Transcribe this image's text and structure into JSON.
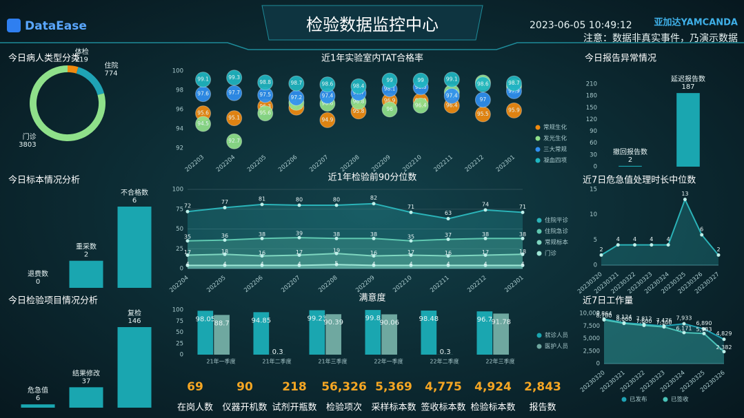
{
  "header": {
    "logo": "DataEase",
    "title": "检验数据监控中心",
    "datetime": "2023-06-05 10:49:12",
    "brand": "亚加达YAMCANDA",
    "notice": "注意：数据非真实事件，乃演示数据"
  },
  "chart_data": [
    {
      "type": "pie",
      "donut": true,
      "title": "今日病人类型分类",
      "categories": [
        "体检",
        "住院",
        "门诊"
      ],
      "values": [
        219,
        774,
        3803
      ],
      "colors": [
        "#f08a0f",
        "#1fa3b5",
        "#8fe08a"
      ]
    },
    {
      "type": "scatter",
      "title": "近1年实验室内TAT合格率",
      "categories": [
        "202203",
        "202204",
        "202205",
        "202206",
        "202207",
        "202208",
        "202209",
        "202210",
        "202211",
        "202212",
        "202301"
      ],
      "ylim": [
        92,
        100
      ],
      "yticks": [
        92,
        94,
        96,
        98,
        100
      ],
      "grid": false,
      "series": [
        {
          "name": "常规生化",
          "color": "#f08a0f",
          "values": [
            95.6,
            95.1,
            96.3,
            96.2,
            94.9,
            95.8,
            96.9,
            96.9,
            96.4,
            95.5,
            95.9
          ]
        },
        {
          "name": "发光生化",
          "color": "#8fe08a",
          "values": [
            94.5,
            92.7,
            95.6,
            96.7,
            96.6,
            96.8,
            96,
            96.4,
            97.8,
            98.8,
            98.4
          ]
        },
        {
          "name": "三大常规",
          "color": "#2f8ff0",
          "values": [
            97.6,
            97.7,
            97.5,
            97.2,
            97.4,
            97.7,
            98.1,
            98.3,
            97.4,
            97,
            97.9
          ]
        },
        {
          "name": "凝血四项",
          "color": "#1fb5c0",
          "values": [
            99.1,
            99.3,
            98.8,
            98.7,
            98.6,
            98.4,
            99,
            99,
            99.1,
            98.6,
            98.7
          ]
        }
      ]
    },
    {
      "type": "bar",
      "title": "今日报告异常情况",
      "categories": [
        "撤回报告数",
        "延迟报告数"
      ],
      "values": [
        2,
        187
      ],
      "color": "#1aa6b0",
      "ylim": [
        0,
        210
      ],
      "yticks": [
        0,
        30,
        60,
        90,
        120,
        150,
        180,
        210
      ],
      "grid": false
    },
    {
      "type": "bar",
      "title": "今日标本情况分析",
      "categories": [
        "退费数",
        "重采数",
        "不合格数"
      ],
      "values": [
        0,
        2,
        6
      ],
      "color": "#1aa6b0"
    },
    {
      "type": "area",
      "title": "近1年检验前90分位数",
      "categories": [
        "202204",
        "202205",
        "202206",
        "202207",
        "202208",
        "202209",
        "202210",
        "202211",
        "202212",
        "202301"
      ],
      "ylim": [
        0,
        100
      ],
      "yticks": [
        0,
        25,
        50,
        75,
        100
      ],
      "grid": true,
      "series": [
        {
          "name": "住院平诊",
          "color": "#2bb3b8",
          "values": [
            72,
            77,
            81,
            80,
            80,
            82,
            71,
            63,
            74,
            71
          ]
        },
        {
          "name": "住院急诊",
          "color": "#5fc8b0",
          "values": [
            35,
            36,
            38,
            39,
            38,
            38,
            35,
            37,
            38,
            38
          ]
        },
        {
          "name": "常规标本",
          "color": "#7fd6c0",
          "values": [
            17,
            18,
            16,
            17,
            19,
            16,
            17,
            16,
            17,
            18
          ]
        },
        {
          "name": "门诊",
          "color": "#9ee6d6",
          "values": [
            4,
            4,
            4,
            4,
            5,
            4,
            4,
            4,
            4,
            4
          ]
        }
      ]
    },
    {
      "type": "area",
      "title": "近7日危急值处理时长中位数",
      "categories": [
        "20230320",
        "20230321",
        "20230322",
        "20230323",
        "20230324",
        "20230325",
        "20230326",
        "20230327"
      ],
      "ylim": [
        0,
        15
      ],
      "yticks": [
        0,
        5,
        10,
        15
      ],
      "grid": false,
      "series": [
        {
          "name": null,
          "color": "#2bb3b8",
          "values": [
            2,
            4,
            4,
            4,
            4,
            13,
            6,
            2
          ]
        }
      ]
    },
    {
      "type": "bar",
      "title": "今日检验项目情况分析",
      "categories": [
        "危急值",
        "结果修改",
        "复检"
      ],
      "values": [
        6,
        37,
        146
      ],
      "color": "#1aa6b0"
    },
    {
      "type": "bar",
      "title": "满意度",
      "categories": [
        "21年一季度",
        "21年二季度",
        "21年三季度",
        "22年一季度",
        "22年二季度",
        "22年三季度"
      ],
      "ylim": [
        0,
        100
      ],
      "yticks": [
        0,
        25,
        50,
        75,
        100
      ],
      "grid": false,
      "series": [
        {
          "name": "就诊人员",
          "color": "#1aa6b0",
          "values": [
            98.05,
            94.85,
            99.23,
            99.8,
            98.48,
            96.7
          ]
        },
        {
          "name": "医护人员",
          "color": "#6fa8a0",
          "values": [
            88.7,
            0.3,
            90.39,
            90.06,
            0.3,
            91.78
          ]
        }
      ]
    },
    {
      "type": "area",
      "title": "近7日工作量",
      "categories": [
        "20230320",
        "20230321",
        "20230322",
        "20230323",
        "20230324",
        "20230325",
        "20230326"
      ],
      "ylim": [
        0,
        10000
      ],
      "yticks": [
        0,
        {
          "value": 2500,
          "label": "2,500"
        },
        {
          "value": 5000,
          "label": "5,000"
        },
        {
          "value": 7500,
          "label": "7,500"
        },
        {
          "value": 10000,
          "label": "10,000"
        }
      ],
      "grid": false,
      "series": [
        {
          "name": "已发布",
          "color": "#1fa3b5",
          "values": [
            8864,
            8124,
            7812,
            7476,
            7933,
            6890,
            4829
          ],
          "value_labels": [
            "8,864",
            "8,124",
            "7,812",
            "7,476",
            "7,933",
            "6,890",
            "4,829"
          ]
        },
        {
          "name": "已签收",
          "color": "#49c2b8",
          "values": [
            8700,
            8000,
            7600,
            7300,
            6171,
            5983,
            2382
          ],
          "value_labels": [
            "8,700",
            "8,000",
            "7,600",
            "7,300",
            "6,171",
            "5,983",
            "2,382"
          ]
        }
      ]
    }
  ],
  "kpis": [
    {
      "value": "69",
      "name": "在岗人数"
    },
    {
      "value": "90",
      "name": "仪器开机数"
    },
    {
      "value": "218",
      "name": "试剂开瓶数"
    },
    {
      "value": "56,326",
      "name": "检验项次"
    },
    {
      "value": "5,369",
      "name": "采样标本数"
    },
    {
      "value": "4,775",
      "name": "签收标本数"
    },
    {
      "value": "4,924",
      "name": "检验标本数"
    },
    {
      "value": "2,843",
      "name": "报告数"
    }
  ]
}
